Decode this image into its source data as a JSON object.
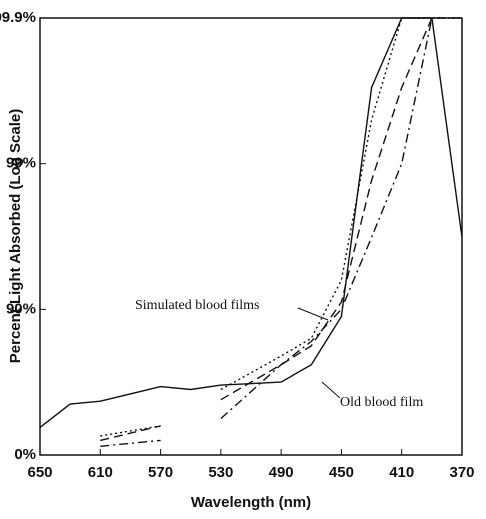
{
  "chart_data": {
    "type": "line",
    "y_label": "Percent Light Absorbed (Log Scale)",
    "x_label": "Wavelength (nm)",
    "y_scale": "absorbance",
    "x": [
      650,
      630,
      610,
      570,
      550,
      530,
      490,
      470,
      450,
      430,
      410,
      390,
      370
    ],
    "xlim": [
      650,
      370
    ],
    "xticks": [
      650,
      610,
      570,
      530,
      490,
      450,
      410,
      370
    ],
    "ylim": [
      0,
      99.9
    ],
    "yticks": [
      {
        "value": 0,
        "label": "0%"
      },
      {
        "value": 90,
        "label": "90%"
      },
      {
        "value": 99,
        "label": "99%"
      },
      {
        "value": 99.9,
        "label": "99.9%"
      }
    ],
    "series": [
      {
        "color": "#111111",
        "dash": "solid",
        "values": [
          35.4,
          55.3,
          57.3,
          66.1,
          64.5,
          66.9,
          68.4,
          76.0,
          88.8,
          99.7,
          99.9,
          99.9,
          96.8
        ]
      },
      {
        "color": "#111111",
        "dash": "dashed",
        "values": [
          10.9,
          null,
          20.6,
          36.9,
          null,
          58.3,
          76.0,
          82.2,
          91.1,
          98.7,
          99.7,
          99.9,
          99.9
        ]
      },
      {
        "color": "#111111",
        "dash": "dotted",
        "values": [
          24.1,
          null,
          25.9,
          36.9,
          null,
          64.5,
          79.1,
          84.2,
          93.7,
          99.5,
          99.9,
          99.9,
          99.9
        ]
      },
      {
        "color": "#111111",
        "dash": "dashdot",
        "values": [
          10.9,
          null,
          12.9,
          20.6,
          null,
          43.8,
          76.0,
          83.4,
          90.0,
          96.8,
          99.0,
          99.9,
          null
        ]
      }
    ],
    "annotations": [
      "Simulated blood films",
      "Old blood film"
    ]
  }
}
